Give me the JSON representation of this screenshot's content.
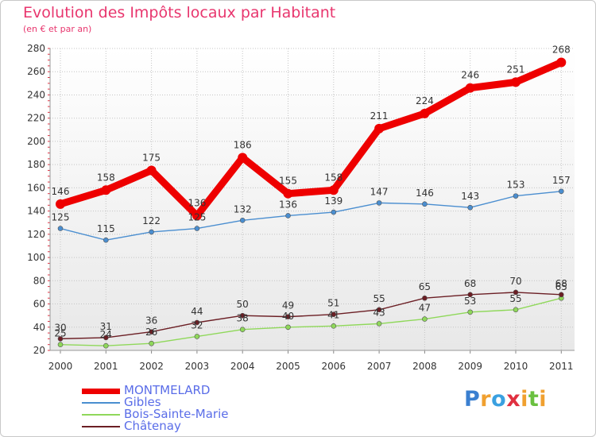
{
  "header": {
    "title": "Evolution des Impôts locaux par Habitant",
    "subtitle": "(en € et par an)"
  },
  "chart_data": {
    "type": "line",
    "title": "Evolution des Impôts locaux par Habitant",
    "subtitle": "(en € et par an)",
    "xlabel": "",
    "ylabel": "",
    "x": [
      "2000",
      "2001",
      "2002",
      "2003",
      "2004",
      "2005",
      "2006",
      "2007",
      "2008",
      "2009",
      "2010",
      "2011"
    ],
    "ylim": [
      20,
      280
    ],
    "yticks": [
      20,
      40,
      60,
      80,
      100,
      120,
      140,
      160,
      180,
      200,
      220,
      240,
      260,
      280
    ],
    "grid": true,
    "legend_position": "bottom-left",
    "series": [
      {
        "name": "MONTMELARD",
        "color": "#ee0000",
        "values": [
          146,
          158,
          175,
          136,
          186,
          155,
          158,
          211,
          224,
          246,
          251,
          268
        ]
      },
      {
        "name": "Gibles",
        "color": "#4a8ed0",
        "values": [
          125,
          115,
          122,
          125,
          132,
          136,
          139,
          147,
          146,
          143,
          153,
          157
        ]
      },
      {
        "name": "Bois-Sainte-Marie",
        "color": "#8fd85a",
        "values": [
          25,
          24,
          26,
          32,
          38,
          40,
          41,
          43,
          47,
          53,
          55,
          65
        ]
      },
      {
        "name": "Châtenay",
        "color": "#6b1e24",
        "values": [
          30,
          31,
          36,
          44,
          50,
          49,
          51,
          55,
          65,
          68,
          70,
          68
        ]
      }
    ]
  },
  "logo": {
    "letters": [
      "P",
      "r",
      "o",
      "x",
      "i",
      "t",
      "i"
    ],
    "colors": [
      "#3a7fd0",
      "#f0a030",
      "#3aa0e0",
      "#e03040",
      "#f0a030",
      "#6ac040",
      "#f0a030"
    ]
  }
}
